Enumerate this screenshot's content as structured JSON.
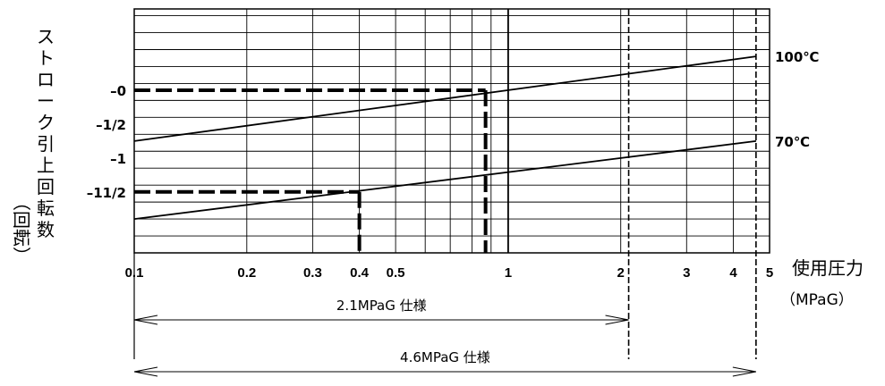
{
  "chart_data": {
    "type": "line",
    "x_scale": "log",
    "xlim": [
      0.1,
      5
    ],
    "x_ticks": [
      {
        "value": 0.1,
        "label": "0.1"
      },
      {
        "value": 0.2,
        "label": "0.2"
      },
      {
        "value": 0.3,
        "label": "0.3"
      },
      {
        "value": 0.4,
        "label": "0.4"
      },
      {
        "value": 0.5,
        "label": "0.5"
      },
      {
        "value": 1,
        "label": "1"
      },
      {
        "value": 2,
        "label": "2"
      },
      {
        "value": 3,
        "label": "3"
      },
      {
        "value": 4,
        "label": "4"
      },
      {
        "value": 5,
        "label": "5"
      }
    ],
    "xlabel": "使用圧力",
    "xlabel_unit": "（MPaG）",
    "ylim": [
      -2.4,
      1.2
    ],
    "y_ticks": [
      {
        "value": 0,
        "label": "–0"
      },
      {
        "value": -0.5,
        "label": "–1/2"
      },
      {
        "value": -1,
        "label": "–1"
      },
      {
        "value": -1.5,
        "label": "–11/2"
      }
    ],
    "ylabel": "ストローク引上回転数",
    "ylabel_unit": "（回転）",
    "series": [
      {
        "name": "100℃",
        "x": [
          0.1,
          4.6
        ],
        "y": [
          -0.75,
          0.5
        ]
      },
      {
        "name": "70℃",
        "x": [
          0.1,
          4.6
        ],
        "y": [
          -1.9,
          -0.75
        ]
      }
    ],
    "reference_lines": [
      {
        "x": 0.87,
        "y": 0
      },
      {
        "x": 0.4,
        "y": -1.5
      }
    ],
    "spec_limits": [
      {
        "x": 2.1,
        "label": "2.1MPaG 仕様"
      },
      {
        "x": 4.6,
        "label": "4.6MPaG 仕様"
      }
    ],
    "grid": true,
    "legend": "none"
  }
}
